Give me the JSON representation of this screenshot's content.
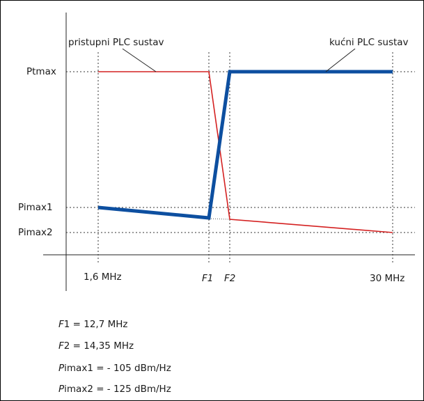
{
  "labels": {
    "ptmax": "Ptmax",
    "pimax1": "Pimax1",
    "pimax2": "Pimax2",
    "access_system": "pristupni PLC sustav",
    "home_system": "kućni PLC sustav",
    "x_start": "1,6 MHz",
    "f1": "F1",
    "f2": "F2",
    "x_end": "30 MHz"
  },
  "formulas": [
    {
      "sym": "F",
      "text": "1 = 12,7 MHz"
    },
    {
      "sym": "F",
      "text": "2 = 14,35 MHz"
    },
    {
      "sym": "P",
      "text": "imax1 = - 105 dBm/Hz"
    },
    {
      "sym": "P",
      "text": "imax2 = - 125 dBm/Hz"
    }
  ],
  "colors": {
    "access_line": "#d42020",
    "home_line": "#0d4fa0",
    "axis": "#222222"
  }
}
